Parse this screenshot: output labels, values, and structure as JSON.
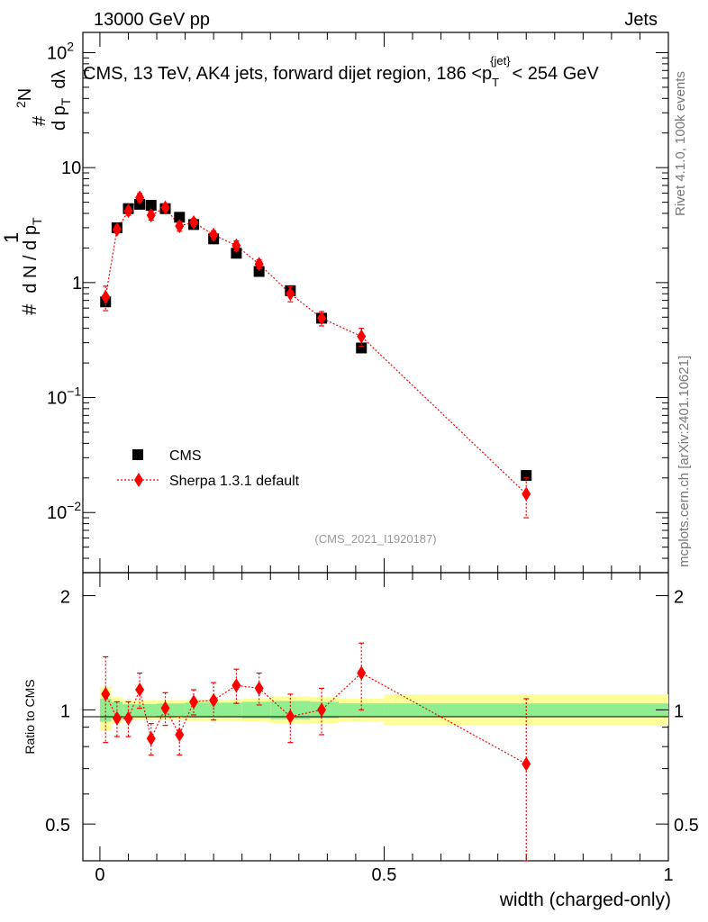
{
  "header": {
    "left": "13000 GeV pp",
    "right": "Jets"
  },
  "chart_data": [
    {
      "type": "scatter",
      "panel": "main",
      "title": "CMS, 13 TeV, AK4 jets, forward dijet region, 186 <p_T^{jet}< 254 GeV",
      "title_main": "CMS, 13 TeV, AK4 jets, forward dijet region, 186 <p",
      "title_tail": "< 254 GeV",
      "title_sub": "T",
      "title_sup": "{jet}",
      "ylabel": "# 1/(d N / d p_T) # d^2N/(d p_T d lambda)",
      "yscale": "log",
      "ylim": [
        0.003,
        150
      ],
      "xlim": [
        -0.03,
        1.0
      ],
      "y_ticks": [
        {
          "v": 100,
          "base": "10",
          "exp": "2"
        },
        {
          "v": 10,
          "base": "10",
          "exp": ""
        },
        {
          "v": 1,
          "base": "1",
          "exp": ""
        },
        {
          "v": 0.1,
          "base": "10",
          "exp": "−1"
        },
        {
          "v": 0.01,
          "base": "10",
          "exp": "−2"
        }
      ],
      "series": [
        {
          "name": "CMS",
          "style": "black-square",
          "x": [
            0.01,
            0.03,
            0.05,
            0.07,
            0.09,
            0.115,
            0.14,
            0.165,
            0.2,
            0.24,
            0.28,
            0.335,
            0.39,
            0.46,
            0.75
          ],
          "y": [
            0.68,
            3.0,
            4.4,
            4.8,
            4.7,
            4.4,
            3.7,
            3.2,
            2.4,
            1.8,
            1.25,
            0.85,
            0.49,
            0.27,
            0.021
          ]
        },
        {
          "name": "Sherpa 1.3.1 default",
          "style": "red-diamond-dotted",
          "x": [
            0.01,
            0.03,
            0.05,
            0.07,
            0.09,
            0.115,
            0.14,
            0.165,
            0.2,
            0.24,
            0.28,
            0.335,
            0.39,
            0.46,
            0.75
          ],
          "y": [
            0.75,
            2.9,
            4.2,
            5.5,
            3.85,
            4.5,
            3.1,
            3.35,
            2.6,
            2.1,
            1.45,
            0.8,
            0.49,
            0.34,
            0.0145
          ],
          "yerr": [
            0.18,
            0.2,
            0.35,
            0.45,
            0.35,
            0.3,
            0.3,
            0.25,
            0.22,
            0.2,
            0.13,
            0.12,
            0.07,
            0.06,
            0.0055
          ]
        }
      ],
      "watermark": "(CMS_2021_I1920187)"
    },
    {
      "type": "scatter",
      "panel": "ratio",
      "ylabel": "Ratio to CMS",
      "xlabel": "width (charged-only)",
      "yscale": "log",
      "ylim": [
        0.4,
        2.3
      ],
      "xlim": [
        -0.03,
        1.0
      ],
      "y_ticks": [
        {
          "v": 2,
          "label": "2"
        },
        {
          "v": 1,
          "label": "1"
        },
        {
          "v": 0.5,
          "label": "0.5"
        }
      ],
      "x_ticks": [
        {
          "v": 0,
          "label": "0"
        },
        {
          "v": 0.5,
          "label": "0.5"
        },
        {
          "v": 1,
          "label": "1"
        }
      ],
      "bands": {
        "bins": [
          {
            "lo": 0.0,
            "hi": 0.02,
            "inner": [
              0.93,
              1.07
            ],
            "outer": [
              0.88,
              1.15
            ]
          },
          {
            "lo": 0.02,
            "hi": 0.04,
            "inner": [
              0.95,
              1.05
            ],
            "outer": [
              0.92,
              1.08
            ]
          },
          {
            "lo": 0.04,
            "hi": 0.1,
            "inner": [
              0.965,
              1.035
            ],
            "outer": [
              0.94,
              1.06
            ]
          },
          {
            "lo": 0.1,
            "hi": 0.15,
            "inner": [
              0.96,
              1.04
            ],
            "outer": [
              0.94,
              1.06
            ]
          },
          {
            "lo": 0.15,
            "hi": 0.25,
            "inner": [
              0.955,
              1.045
            ],
            "outer": [
              0.935,
              1.065
            ]
          },
          {
            "lo": 0.25,
            "hi": 0.3,
            "inner": [
              0.95,
              1.05
            ],
            "outer": [
              0.93,
              1.07
            ]
          },
          {
            "lo": 0.3,
            "hi": 0.37,
            "inner": [
              0.945,
              1.055
            ],
            "outer": [
              0.92,
              1.085
            ]
          },
          {
            "lo": 0.37,
            "hi": 0.42,
            "inner": [
              0.95,
              1.05
            ],
            "outer": [
              0.92,
              1.08
            ]
          },
          {
            "lo": 0.42,
            "hi": 0.5,
            "inner": [
              0.96,
              1.04
            ],
            "outer": [
              0.93,
              1.07
            ]
          },
          {
            "lo": 0.5,
            "hi": 1.0,
            "inner": [
              0.96,
              1.04
            ],
            "outer": [
              0.91,
              1.1
            ]
          }
        ]
      },
      "series": [
        {
          "name": "Sherpa 1.3.1 default / CMS",
          "style": "red-diamond-dotted",
          "x": [
            0.01,
            0.03,
            0.05,
            0.07,
            0.09,
            0.115,
            0.14,
            0.165,
            0.2,
            0.24,
            0.28,
            0.335,
            0.39,
            0.46,
            0.75
          ],
          "y": [
            1.1,
            0.95,
            0.95,
            1.13,
            0.84,
            1.01,
            0.86,
            1.05,
            1.06,
            1.16,
            1.14,
            0.96,
            1.0,
            1.25,
            0.72
          ],
          "yerr": [
            0.28,
            0.1,
            0.1,
            0.12,
            0.08,
            0.1,
            0.1,
            0.08,
            0.12,
            0.12,
            0.11,
            0.14,
            0.14,
            0.25,
            0.35
          ]
        }
      ]
    }
  ],
  "legend": {
    "cms": "CMS",
    "sherpa": "Sherpa 1.3.1 default"
  },
  "sidebar": {
    "rivet": "Rivet 4.1.0,  100k events",
    "mcplots": "mcplots.cern.ch [arXiv:2401.10621]"
  },
  "colors": {
    "sherpa": "#ff0000",
    "band_inner": "#90ee90",
    "band_outer": "#ffff99"
  }
}
